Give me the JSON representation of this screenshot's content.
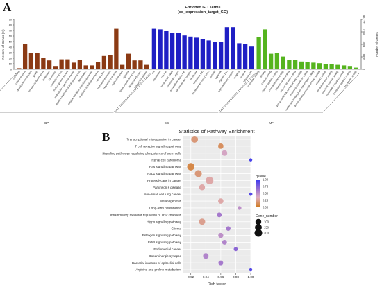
{
  "chart_data": [
    {
      "type": "bar",
      "panel": "A",
      "title": "Enriched GO Terms",
      "subtitle": "(co_expression_target_GO)",
      "ylabel": "Percent of Genes (%)",
      "ylabel_right": "Number of Genes",
      "ylim": [
        0,
        90
      ],
      "y_ticks": [
        0,
        10,
        20,
        30,
        40,
        50,
        60,
        70,
        80,
        90
      ],
      "right_ticks": [
        "0",
        "3186",
        "6000",
        "9957",
        "12,798"
      ],
      "groups": [
        {
          "label": "BP",
          "color": "#8b3a14",
          "start": 0,
          "end": 21
        },
        {
          "label": "CC",
          "color": "#1f1fc4",
          "start": 22,
          "end": 38
        },
        {
          "label": "MF",
          "color": "#55b41e",
          "start": 39,
          "end": 55
        }
      ],
      "values": [
        2,
        46,
        29,
        29,
        20,
        16,
        6,
        18,
        18,
        12,
        17,
        7,
        7,
        13,
        24,
        26,
        73,
        8,
        28,
        16,
        16,
        8,
        73,
        72,
        70,
        66,
        66,
        61,
        59,
        57,
        55,
        52,
        50,
        49,
        76,
        76,
        47,
        45,
        41,
        58,
        72,
        28,
        29,
        23,
        17,
        17,
        14,
        13,
        12,
        11,
        10,
        9,
        8,
        7,
        6,
        3
      ],
      "categories": [
        "cell killing",
        "cellular process",
        "developmental process",
        "growth",
        "immune system process",
        "localization",
        "locomotion",
        "metabolic process",
        "multi-organism process",
        "multicellular organismal process",
        "negative regulation of biological process",
        "pigmentation",
        "positive regulation of biological process",
        "regulation of biological process",
        "reproduction",
        "reproductive process",
        "response to stimulus",
        "rhythmic process",
        "signaling",
        "single-organism process",
        "biological adhesion",
        "biological regulation",
        "cell",
        "cell junction",
        "cell part",
        "extracellular matrix",
        "extracellular region",
        "extracellular region part",
        "macromolecular complex",
        "membrane",
        "membrane part",
        "membrane-enclosed lumen",
        "nucleoid",
        "organelle",
        "organelle part",
        "supramolecular complex",
        "symplast",
        "synapse",
        "synapse part",
        "antioxidant activity",
        "binding",
        "catalytic activity",
        "channel regulator activity",
        "chemoattractant activity",
        "electron carrier activity",
        "enzyme regulator activity",
        "guanyl-nucleotide exchange factor activity",
        "molecular transducer activity",
        "nucleic acid binding transcription factor activity",
        "protein binding transcription factor activity",
        "receptor activity",
        "signal transducer activity",
        "structural molecule activity",
        "transcription regulator activity",
        "translation regulator activity",
        "transporter activity"
      ]
    },
    {
      "type": "scatter",
      "panel": "B",
      "title": "Statistics of Pathway Enrichment",
      "xlabel": "Rich factor",
      "xlim": [
        0.91,
        1.0
      ],
      "x_ticks": [
        0.92,
        0.94,
        0.96,
        0.98,
        1.0
      ],
      "categories": [
        "Transcriptional misregulation in cancer",
        "T cell receptor signaling pathway",
        "Signaling pathways regulating pluripotency of stem cells",
        "Renal cell carcinoma",
        "Ras signaling pathway",
        "Rap1 signaling pathway",
        "Proteoglycans in cancer",
        "Parkinson s disease",
        "Non-small cell lung cancer",
        "Melanogenesis",
        "Long-term potentiation",
        "Inflammatory mediator regulation of TRP channels",
        "Hippo signaling pathway",
        "Glioma",
        "Estrogen signaling pathway",
        "ErbB signaling pathway",
        "Endometrial cancer",
        "Dopaminergic synapse",
        "Bacterial invasion of epithelial cells",
        "Arginine and proline metabolism"
      ],
      "x": [
        0.925,
        0.96,
        0.965,
        1.0,
        0.92,
        0.93,
        0.945,
        0.935,
        1.0,
        0.96,
        0.985,
        0.958,
        0.935,
        0.97,
        0.96,
        0.965,
        0.98,
        0.94,
        0.96,
        1.0
      ],
      "qvalue": [
        0.2,
        0.15,
        0.4,
        0.95,
        0.1,
        0.2,
        0.3,
        0.3,
        0.9,
        0.3,
        0.5,
        0.6,
        0.25,
        0.6,
        0.5,
        0.55,
        0.7,
        0.55,
        0.6,
        0.9
      ],
      "gene_number": [
        150,
        80,
        90,
        15,
        180,
        160,
        200,
        100,
        20,
        80,
        30,
        60,
        120,
        50,
        70,
        60,
        35,
        90,
        60,
        15
      ],
      "legend_color_title": "qvalue",
      "legend_color_ticks": [
        "1.00",
        "0.75",
        "0.50",
        "0.25",
        "0.00"
      ],
      "legend_size_title": "Gene_number",
      "legend_size_values": [
        100,
        150,
        200
      ]
    }
  ],
  "panels": {
    "a": "A",
    "b": "B"
  }
}
